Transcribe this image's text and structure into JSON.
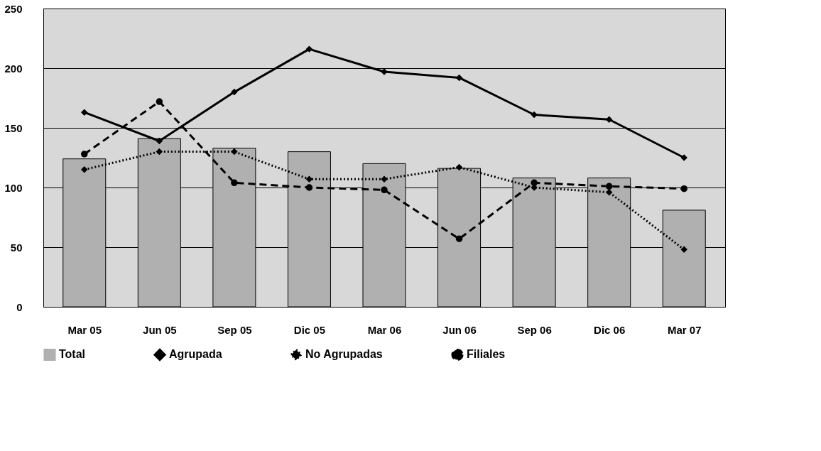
{
  "chart_data": {
    "type": "bar",
    "categories": [
      "Mar 05",
      "Jun 05",
      "Sep 05",
      "Dic 05",
      "Mar 06",
      "Jun 06",
      "Sep 06",
      "Dic 06",
      "Mar 07"
    ],
    "series": [
      {
        "name": "Total",
        "color": "#b0b0b0",
        "values": [
          124,
          141,
          133,
          130,
          120,
          116,
          108,
          108,
          81
        ]
      },
      {
        "name": "Agrupada",
        "type": "line",
        "color": "#000000",
        "marker": "diamond",
        "line_style": "solid",
        "values": [
          163,
          139,
          180,
          216,
          197,
          192,
          161,
          157,
          125
        ]
      },
      {
        "name": "No Agrupadas",
        "type": "line",
        "color": "#000000",
        "marker": "diamond",
        "line_style": "dotted",
        "values": [
          115,
          130,
          130,
          107,
          107,
          117,
          100,
          96,
          48
        ]
      },
      {
        "name": "Filiales",
        "type": "line",
        "color": "#000000",
        "marker": "circle",
        "line_style": "dashed",
        "values": [
          128,
          172,
          104,
          100,
          98,
          57,
          104,
          101,
          99
        ]
      }
    ],
    "ylim": [
      0,
      250
    ],
    "yticks": [
      0,
      50,
      100,
      150,
      200,
      250
    ],
    "grid": "y",
    "legend": "bottom"
  }
}
